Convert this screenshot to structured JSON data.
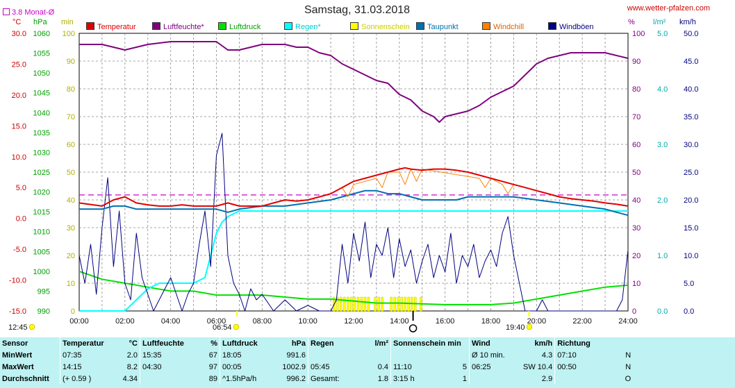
{
  "header": {
    "title": "Samstag, 31.03.2018",
    "website": "www.wetter-pfalzen.com",
    "avg_label": "3.8 Monat-Ø",
    "unit_celsius": "°C",
    "unit_hpa": "hPa",
    "unit_min": "min",
    "unit_percent": "%",
    "unit_lm2": "l/m²",
    "unit_kmh": "km/h"
  },
  "legend": [
    {
      "label": "Temperatur",
      "color": "#e00000"
    },
    {
      "label": "Luftfeuchte*",
      "color": "#800080"
    },
    {
      "label": "Luftdruck",
      "color": "#00e000"
    },
    {
      "label": "Regen*",
      "color": "#00ffff"
    },
    {
      "label": "Sonnenschein",
      "color": "#ffff00"
    },
    {
      "label": "Taupunkt",
      "color": "#0070b0"
    },
    {
      "label": "Windchill",
      "color": "#ff8000"
    },
    {
      "label": "Windböen",
      "color": "#000080"
    }
  ],
  "markers": {
    "sunrise": "06:54",
    "sunset": "19:40",
    "day_length": "12:45"
  },
  "chart_data": {
    "type": "line",
    "x_label_ticks": [
      "00:00",
      "02:00",
      "04:00",
      "06:00",
      "08:00",
      "10:00",
      "12:00",
      "14:00",
      "16:00",
      "18:00",
      "20:00",
      "22:00",
      "24:00"
    ],
    "xlim_hours": [
      0,
      24
    ],
    "grid": true,
    "legend_position": "top",
    "axes": {
      "temperature_c": {
        "range": [
          -15,
          30
        ],
        "ticks": [
          "30.0",
          "25.0",
          "20.0",
          "15.0",
          "10.0",
          "5.0",
          "0.0",
          "-5.0",
          "-10.0",
          "-15.0"
        ],
        "color": "#cc0000"
      },
      "pressure_hpa": {
        "range": [
          990,
          1060
        ],
        "ticks": [
          "1060",
          "1055",
          "1050",
          "1045",
          "1040",
          "1035",
          "1030",
          "1025",
          "1020",
          "1015",
          "1010",
          "1005",
          "1000",
          "995",
          "990"
        ],
        "color": "#00a000"
      },
      "sun_min": {
        "range": [
          0,
          100
        ],
        "ticks": [
          "100",
          "90",
          "80",
          "70",
          "60",
          "50",
          "40",
          "30",
          "20",
          "10",
          "0"
        ],
        "color": "#b0b000"
      },
      "humidity_pct": {
        "range": [
          0,
          100
        ],
        "ticks": [
          "100",
          "90",
          "80",
          "70",
          "60",
          "50",
          "40",
          "30",
          "20",
          "10",
          "0"
        ],
        "color": "#800080"
      },
      "rain_lm2": {
        "range": [
          0,
          5
        ],
        "ticks": [
          "5.0",
          "4.0",
          "3.0",
          "2.0",
          "1.0",
          "0.0"
        ],
        "color": "#00aaaa"
      },
      "wind_kmh": {
        "range": [
          0,
          50
        ],
        "ticks": [
          "50.0",
          "45.0",
          "40.0",
          "35.0",
          "30.0",
          "25.0",
          "20.0",
          "15.0",
          "10.0",
          "5.0",
          "0.0"
        ],
        "color": "#000080"
      }
    },
    "monthly_avg_temp_c": 3.8,
    "series": [
      {
        "name": "Temperatur",
        "axis": "temperature_c",
        "color": "#e00000",
        "x": [
          0,
          1,
          1.5,
          2,
          2.5,
          3,
          3.5,
          4,
          4.5,
          5,
          5.5,
          6,
          6.5,
          7,
          7.5,
          8,
          8.5,
          9,
          9.5,
          10,
          10.5,
          11,
          11.5,
          12,
          12.5,
          13,
          13.5,
          14,
          14.25,
          14.5,
          15,
          15.5,
          16,
          16.5,
          17,
          17.5,
          18,
          18.5,
          19,
          19.5,
          20,
          20.5,
          21,
          21.5,
          22,
          22.5,
          23,
          23.5,
          24
        ],
        "y": [
          2.5,
          2.0,
          3.0,
          3.5,
          2.5,
          2.2,
          2.0,
          2.0,
          2.2,
          2.0,
          2.0,
          2.0,
          2.5,
          2.0,
          2.0,
          2.0,
          2.5,
          3.0,
          2.8,
          3.0,
          3.5,
          4.0,
          5.0,
          6.0,
          6.5,
          7.0,
          7.5,
          8.0,
          8.2,
          8.0,
          7.8,
          8.0,
          8.0,
          7.8,
          7.5,
          7.0,
          6.5,
          6.0,
          5.5,
          5.0,
          4.5,
          4.0,
          3.5,
          3.2,
          3.0,
          2.8,
          2.5,
          2.3,
          2.0
        ]
      },
      {
        "name": "Luftfeuchte*",
        "axis": "humidity_pct",
        "color": "#800080",
        "x": [
          0,
          1,
          1.5,
          2,
          2.5,
          3,
          4,
          4.5,
          5,
          5.5,
          6,
          6.5,
          7,
          7.5,
          8,
          8.5,
          9,
          9.5,
          10,
          10.5,
          11,
          11.5,
          12,
          12.5,
          13,
          13.5,
          14,
          14.5,
          15,
          15.5,
          15.75,
          16,
          16.5,
          17,
          17.5,
          18,
          18.5,
          19,
          19.5,
          20,
          20.5,
          21,
          21.5,
          22,
          23,
          23.5,
          24
        ],
        "y": [
          96,
          96,
          95,
          94,
          95,
          96,
          97,
          97,
          97,
          97,
          97,
          94,
          94,
          95,
          96,
          96,
          96,
          95,
          95,
          93,
          92,
          89,
          87,
          85,
          83,
          82,
          78,
          76,
          72,
          70,
          68,
          70,
          71,
          72,
          74,
          77,
          79,
          81,
          85,
          89,
          91,
          92,
          93,
          93,
          93,
          92,
          91
        ]
      },
      {
        "name": "Luftdruck",
        "axis": "pressure_hpa",
        "color": "#00e000",
        "x": [
          0,
          1,
          2,
          3,
          4,
          5,
          6,
          7,
          8,
          9,
          10,
          11,
          12,
          13,
          14,
          15,
          16,
          17,
          18,
          19,
          19.5,
          20,
          21,
          22,
          23,
          24
        ],
        "y": [
          1000,
          998,
          997,
          996,
          995,
          995,
          994,
          994,
          994,
          993.5,
          993,
          993,
          992.5,
          992,
          992,
          991.8,
          991.6,
          991.6,
          991.6,
          992,
          992.5,
          993,
          994,
          995,
          996,
          996.5
        ]
      },
      {
        "name": "Regen*",
        "axis": "rain_lm2",
        "color": "#00ffff",
        "x": [
          0,
          2,
          2.5,
          3,
          3.5,
          4,
          4.5,
          5,
          5.5,
          5.75,
          6,
          6.25,
          6.5,
          7,
          8,
          10,
          12,
          14,
          16,
          18,
          20,
          22,
          23,
          24
        ],
        "y": [
          0,
          0,
          0.2,
          0.4,
          0.5,
          0.5,
          0.5,
          0.5,
          0.6,
          1.0,
          1.4,
          1.6,
          1.7,
          1.8,
          1.8,
          1.8,
          1.8,
          1.8,
          1.8,
          1.8,
          1.8,
          1.8,
          1.8,
          1.8
        ]
      },
      {
        "name": "Taupunkt",
        "axis": "temperature_c",
        "color": "#0070b0",
        "x": [
          0,
          1,
          1.5,
          2,
          2.5,
          3,
          4,
          5,
          6,
          6.5,
          7,
          8,
          9,
          10,
          11,
          11.5,
          12,
          12.5,
          13,
          13.5,
          14,
          14.5,
          15,
          15.5,
          16,
          16.5,
          17,
          17.5,
          18,
          18.5,
          19,
          20,
          21,
          22,
          23,
          24
        ],
        "y": [
          1.5,
          1.5,
          2.0,
          2.0,
          1.5,
          1.5,
          1.5,
          1.5,
          1.5,
          1.0,
          1.5,
          2.0,
          2.0,
          2.5,
          3.0,
          3.5,
          4.0,
          4.5,
          4.5,
          4.0,
          4.0,
          3.5,
          3.0,
          3.0,
          3.0,
          3.0,
          3.5,
          3.5,
          3.5,
          3.5,
          3.5,
          3.0,
          2.5,
          2.0,
          1.5,
          0.5
        ]
      },
      {
        "name": "Windchill",
        "axis": "temperature_c",
        "color": "#ff8000",
        "x": [
          11.5,
          11.75,
          12,
          12.5,
          13,
          13.25,
          13.5,
          14,
          14.25,
          14.5,
          14.75,
          15,
          17.5,
          17.75,
          18,
          18.5,
          18.75,
          19
        ],
        "y": [
          5.0,
          3.5,
          5.5,
          6.0,
          6.5,
          5.0,
          7.5,
          7.5,
          5.5,
          8.0,
          6.0,
          8.0,
          6.5,
          5.0,
          6.5,
          5.5,
          4.0,
          5.5
        ]
      },
      {
        "name": "Windböen",
        "axis": "wind_kmh",
        "color": "#000080",
        "x": [
          0,
          0.25,
          0.5,
          0.75,
          1,
          1.25,
          1.5,
          1.75,
          2,
          2.25,
          2.5,
          2.75,
          3,
          3.25,
          3.5,
          3.75,
          4,
          4.25,
          4.5,
          4.75,
          5,
          5.25,
          5.5,
          5.75,
          6,
          6.25,
          6.5,
          6.75,
          7,
          7.25,
          7.5,
          7.75,
          8,
          8.5,
          9,
          9.5,
          10,
          10.5,
          11,
          11.25,
          11.5,
          11.75,
          12,
          12.25,
          12.5,
          12.75,
          13,
          13.25,
          13.5,
          13.75,
          14,
          14.25,
          14.5,
          14.75,
          15,
          15.25,
          15.5,
          15.75,
          16,
          16.25,
          16.5,
          16.75,
          17,
          17.25,
          17.5,
          17.75,
          18,
          18.25,
          18.5,
          18.75,
          19,
          19.25,
          19.5,
          19.75,
          20,
          20.25,
          20.5,
          20.75,
          21,
          22,
          23,
          23.5,
          23.75,
          24
        ],
        "y": [
          10,
          5,
          12,
          3,
          15,
          24,
          8,
          18,
          5,
          2,
          14,
          6,
          3,
          0,
          2,
          4,
          6,
          3,
          0,
          3,
          5,
          12,
          18,
          8,
          28,
          32,
          10,
          5,
          3,
          0,
          4,
          2,
          3,
          0,
          2,
          0,
          1,
          0,
          0,
          2,
          12,
          5,
          14,
          9,
          16,
          6,
          12,
          10,
          15,
          6,
          13,
          8,
          11,
          5,
          9,
          12,
          6,
          10,
          7,
          14,
          5,
          10,
          8,
          12,
          6,
          9,
          11,
          8,
          14,
          17,
          10,
          5,
          0,
          0,
          0,
          2,
          0,
          0,
          0,
          0,
          0,
          0,
          2,
          11
        ]
      }
    ],
    "sunshine_intervals": [
      [
        11.1,
        11.9
      ],
      [
        12.0,
        12.7
      ],
      [
        12.9,
        13.3
      ],
      [
        13.6,
        14.4
      ],
      [
        14.5,
        14.8
      ],
      [
        14.9,
        15.0
      ]
    ],
    "sunshine_total_h": "3:15"
  },
  "stats": {
    "headers": {
      "sensor": "Sensor",
      "temp": "Temperatur",
      "temp_unit": "°C",
      "hum": "Luftfeuchte",
      "hum_unit": "%",
      "press": "Luftdruck",
      "press_unit": "hPa",
      "rain": "Regen",
      "rain_unit": "l/m²",
      "sun": "Sonnenschein min",
      "wind": "Wind",
      "wind_unit": "km/h",
      "dir": "Richtung"
    },
    "rows": [
      {
        "label": "MinWert",
        "temp_time": "07:35",
        "temp_val": "2.0",
        "hum_time": "15:35",
        "hum_val": "67",
        "press_time": "18:05",
        "press_val": "991.6",
        "rain_time": "",
        "rain_val": "",
        "sun_time": "",
        "sun_val": "",
        "wind_time": "Ø 10 min.",
        "wind_val": "4.3",
        "dir_time": "07:10",
        "dir_val": "N"
      },
      {
        "label": "MaxWert",
        "temp_time": "14:15",
        "temp_val": "8.2",
        "hum_time": "04:30",
        "hum_val": "97",
        "press_time": "00:05",
        "press_val": "1002.9",
        "rain_time": "05:45",
        "rain_val": "0.4",
        "sun_time": "11:10",
        "sun_val": "5",
        "wind_time": "06:25",
        "wind_val": "SW 10.4",
        "dir_time": "00:50",
        "dir_val": "N"
      },
      {
        "label": "Durchschnitt",
        "temp_time": "(+ 0.59 )",
        "temp_val": "4.34",
        "hum_time": "",
        "hum_val": "89",
        "press_time": "^1.5hPa/h",
        "press_val": "996.2",
        "rain_time": "Gesamt:",
        "rain_val": "1.8",
        "sun_time": "3:15 h",
        "sun_val": "1",
        "wind_time": "",
        "wind_val": "2.9",
        "dir_time": "",
        "dir_val": "O"
      }
    ]
  }
}
